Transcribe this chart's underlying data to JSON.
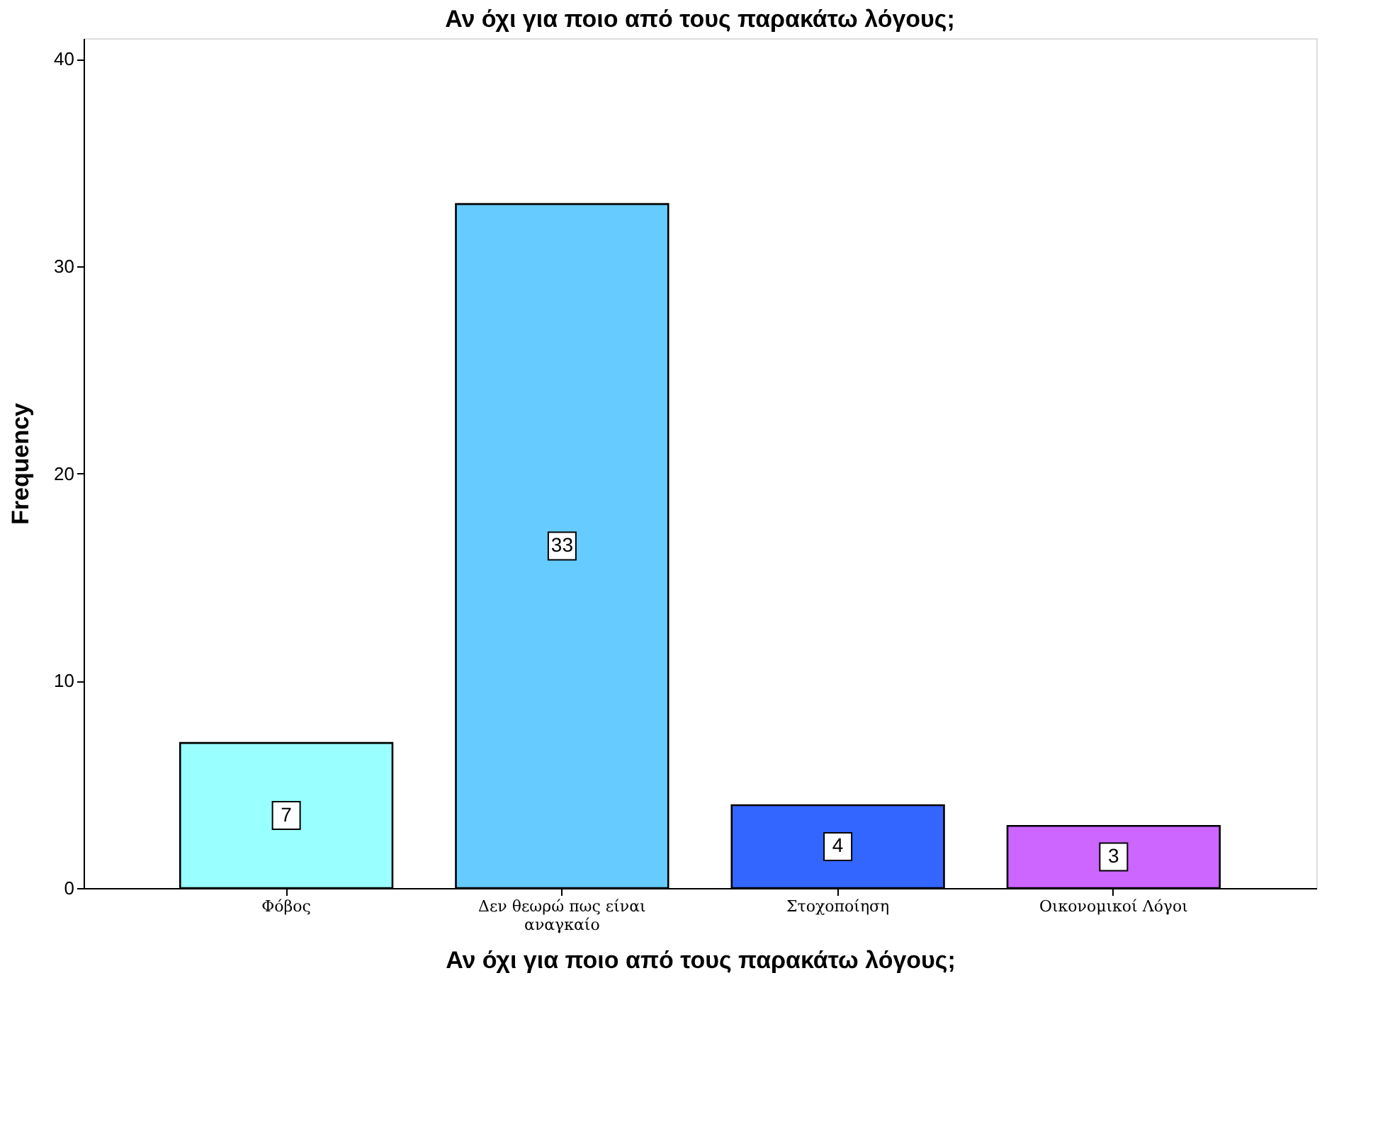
{
  "chart_data": {
    "type": "bar",
    "title": "Αν όχι για ποιο από τους παρακάτω λόγους;",
    "xlabel": "Αν όχι για ποιο από τους παρακάτω λόγους;",
    "ylabel": "Frequency",
    "categories": [
      "Φόβος",
      "Δεν θεωρώ πως είναι αναγκαίο",
      "Στοχοποίηση",
      "Οικονομικοί Λόγοι"
    ],
    "values": [
      7,
      33,
      4,
      3
    ],
    "colors": [
      "#99ffff",
      "#66ccff",
      "#3366ff",
      "#cc66ff"
    ],
    "ylim": [
      0,
      41
    ],
    "yticks": [
      0,
      10,
      20,
      30,
      40
    ],
    "grid": false,
    "data_labels": true
  }
}
